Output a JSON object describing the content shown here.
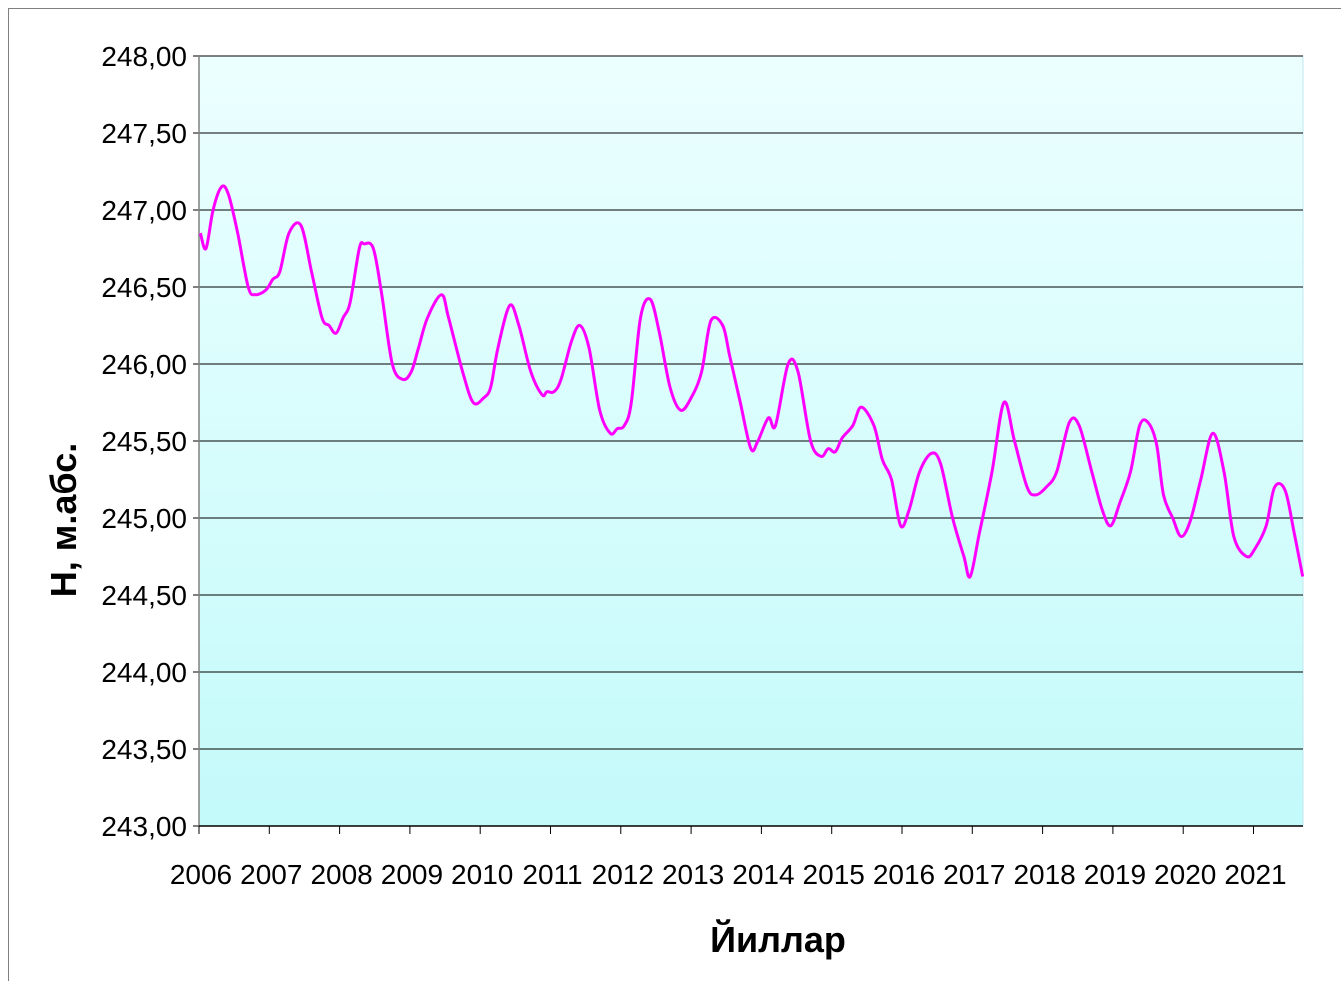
{
  "chart_data": {
    "type": "line",
    "xlabel": "Йиллар",
    "ylabel": "Н, м.абс.",
    "ylim": [
      243.0,
      248.0
    ],
    "yticks": [
      "243,00",
      "243,50",
      "244,00",
      "244,50",
      "245,00",
      "245,50",
      "246,00",
      "246,50",
      "247,00",
      "247,50",
      "248,00"
    ],
    "xticks": [
      "2006",
      "2007",
      "2008",
      "2009",
      "2010",
      "2011",
      "2012",
      "2013",
      "2014",
      "2015",
      "2016",
      "2017",
      "2018",
      "2019",
      "2020",
      "2021"
    ],
    "xlim": [
      2006.0,
      2021.75
    ],
    "grid": true,
    "plot_background": "#c8fafa",
    "line_color": "#ff00ff",
    "series": [
      {
        "x": [
          2006.02,
          2006.1,
          2006.2,
          2006.32,
          2006.42,
          2006.55,
          2006.7,
          2006.8,
          2006.95,
          2007.05,
          2007.15,
          2007.28,
          2007.45,
          2007.6,
          2007.75,
          2007.85,
          2007.95,
          2008.05,
          2008.15,
          2008.28,
          2008.35,
          2008.48,
          2008.6,
          2008.75,
          2008.9,
          2009.02,
          2009.12,
          2009.25,
          2009.45,
          2009.55,
          2009.75,
          2009.9,
          2010.05,
          2010.15,
          2010.25,
          2010.42,
          2010.55,
          2010.72,
          2010.88,
          2010.95,
          2011.05,
          2011.15,
          2011.3,
          2011.42,
          2011.55,
          2011.7,
          2011.85,
          2011.95,
          2012.05,
          2012.15,
          2012.28,
          2012.42,
          2012.55,
          2012.7,
          2012.85,
          2013.0,
          2013.15,
          2013.28,
          2013.45,
          2013.55,
          2013.7,
          2013.85,
          2013.95,
          2014.1,
          2014.2,
          2014.38,
          2014.52,
          2014.7,
          2014.85,
          2014.95,
          2015.05,
          2015.15,
          2015.3,
          2015.42,
          2015.6,
          2015.72,
          2015.85,
          2015.98,
          2016.1,
          2016.25,
          2016.42,
          2016.55,
          2016.72,
          2016.88,
          2016.97,
          2017.1,
          2017.28,
          2017.45,
          2017.6,
          2017.78,
          2017.9,
          2018.05,
          2018.2,
          2018.38,
          2018.52,
          2018.7,
          2018.85,
          2018.97,
          2019.1,
          2019.25,
          2019.38,
          2019.5,
          2019.62,
          2019.72,
          2019.85,
          2019.97,
          2020.1,
          2020.25,
          2020.42,
          2020.58,
          2020.72,
          2020.9,
          2021.02,
          2021.18,
          2021.3,
          2021.45,
          2021.58,
          2021.7
        ],
        "values": [
          246.85,
          246.75,
          247.0,
          247.15,
          247.1,
          246.85,
          246.5,
          246.45,
          246.48,
          246.55,
          246.6,
          246.85,
          246.9,
          246.6,
          246.3,
          246.25,
          246.2,
          246.3,
          246.4,
          246.75,
          246.78,
          246.75,
          246.45,
          246.0,
          245.9,
          245.95,
          246.1,
          246.3,
          246.45,
          246.3,
          245.95,
          245.75,
          245.78,
          245.85,
          246.1,
          246.38,
          246.25,
          245.95,
          245.8,
          245.82,
          245.82,
          245.9,
          246.15,
          246.25,
          246.1,
          245.7,
          245.55,
          245.58,
          245.6,
          245.75,
          246.3,
          246.42,
          246.2,
          245.85,
          245.7,
          245.78,
          245.95,
          246.28,
          246.25,
          246.05,
          245.75,
          245.45,
          245.5,
          245.65,
          245.6,
          246.0,
          245.95,
          245.5,
          245.4,
          245.45,
          245.43,
          245.52,
          245.6,
          245.72,
          245.6,
          245.38,
          245.25,
          244.95,
          245.05,
          245.3,
          245.42,
          245.35,
          245.0,
          244.75,
          244.62,
          244.9,
          245.3,
          245.75,
          245.5,
          245.2,
          245.15,
          245.2,
          245.3,
          245.62,
          245.6,
          245.3,
          245.05,
          244.95,
          245.1,
          245.3,
          245.6,
          245.62,
          245.48,
          245.15,
          245.0,
          244.88,
          244.98,
          245.25,
          245.55,
          245.3,
          244.88,
          244.75,
          244.8,
          244.95,
          245.2,
          245.18,
          244.9,
          244.62
        ]
      }
    ]
  }
}
